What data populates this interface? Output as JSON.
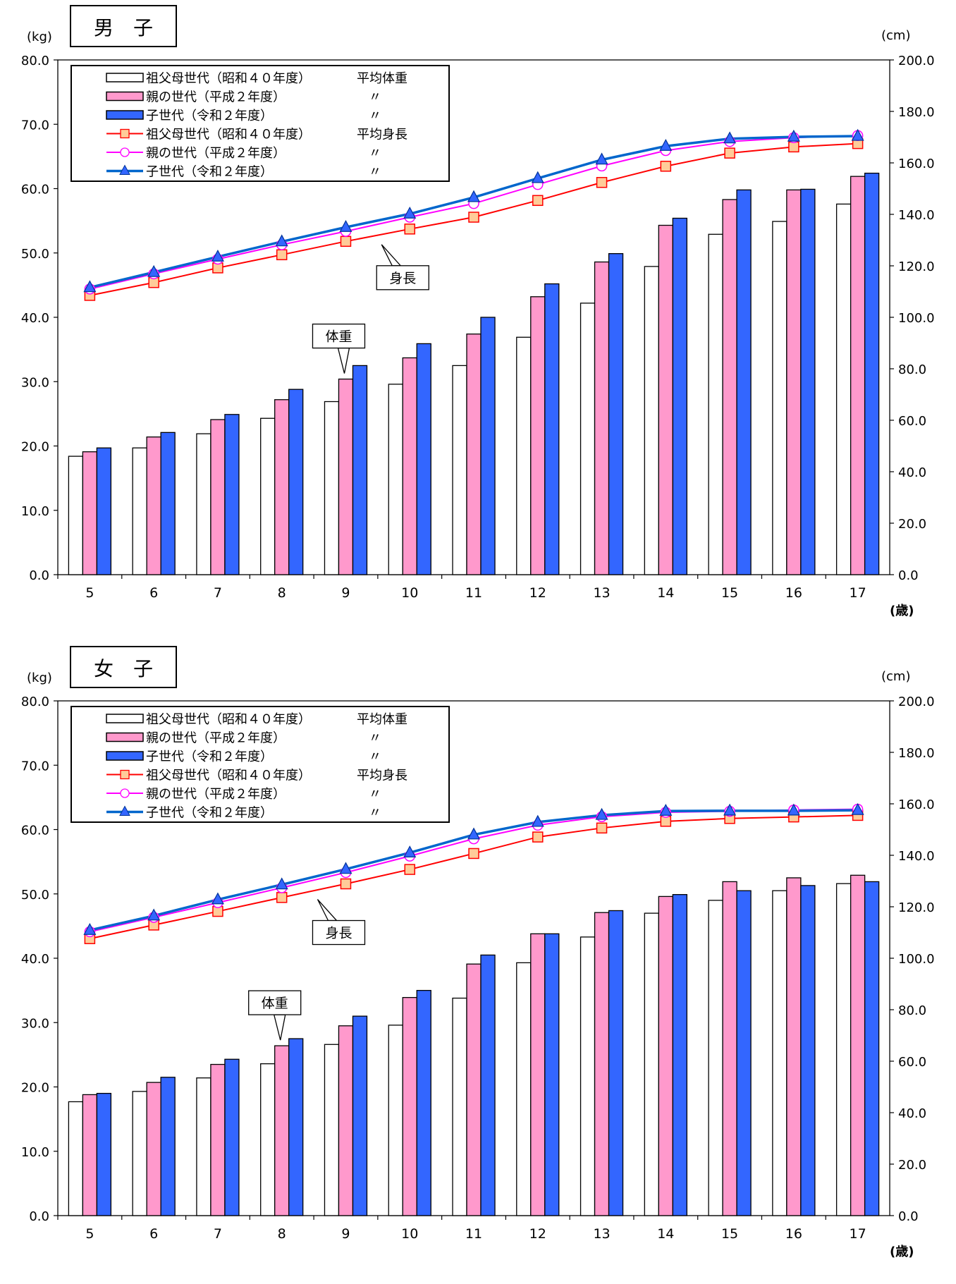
{
  "chart_data": [
    {
      "type": "bar",
      "title": "男　子",
      "y_left_unit": "(kg)",
      "y_right_unit": "(cm)",
      "x_unit": "(歳)",
      "categories": [
        "5",
        "6",
        "7",
        "8",
        "9",
        "10",
        "11",
        "12",
        "13",
        "14",
        "15",
        "16",
        "17"
      ],
      "ylim_left": [
        0,
        80
      ],
      "ylim_right": [
        0,
        200
      ],
      "yticks_left": [
        "0.0",
        "10.0",
        "20.0",
        "30.0",
        "40.0",
        "50.0",
        "60.0",
        "70.0",
        "80.0"
      ],
      "yticks_right": [
        "0.0",
        "20.0",
        "40.0",
        "60.0",
        "80.0",
        "100.0",
        "120.0",
        "140.0",
        "160.0",
        "180.0",
        "200.0"
      ],
      "legend_placement": "top-left",
      "grid": false,
      "series": [
        {
          "name": "祖父母世代（昭和４０年度）",
          "legend_suffix": "平均体重",
          "kind": "bar",
          "axis": "left",
          "color": "#ffffff",
          "values": [
            18.4,
            19.7,
            21.9,
            24.3,
            26.9,
            29.6,
            32.5,
            36.9,
            42.2,
            47.9,
            52.9,
            54.9,
            57.6
          ]
        },
        {
          "name": "親の世代（平成２年度）",
          "legend_suffix": "〃",
          "kind": "bar",
          "axis": "left",
          "color": "#ff99cc",
          "values": [
            19.1,
            21.4,
            24.1,
            27.2,
            30.4,
            33.7,
            37.4,
            43.2,
            48.6,
            54.3,
            58.3,
            59.8,
            61.9
          ]
        },
        {
          "name": "子世代（令和２年度）",
          "legend_suffix": "〃",
          "kind": "bar",
          "axis": "left",
          "color": "#3366ff",
          "values": [
            19.7,
            22.1,
            24.9,
            28.8,
            32.5,
            35.9,
            40.0,
            45.2,
            49.9,
            55.4,
            59.8,
            59.9,
            62.4
          ]
        },
        {
          "name": "祖父母世代（昭和４０年度）",
          "legend_suffix": "平均身長",
          "kind": "line",
          "axis": "right",
          "color": "#ff0000",
          "marker": "square",
          "values": [
            108.5,
            113.5,
            119.2,
            124.3,
            129.5,
            134.3,
            138.9,
            145.4,
            152.4,
            158.7,
            163.8,
            166.2,
            167.5
          ]
        },
        {
          "name": "親の世代（平成２年度）",
          "legend_suffix": "〃",
          "kind": "line",
          "axis": "right",
          "color": "#ff00ff",
          "marker": "circle",
          "values": [
            111.0,
            116.9,
            122.6,
            128.2,
            133.4,
            138.9,
            144.2,
            151.6,
            158.8,
            164.8,
            168.3,
            169.8,
            170.6
          ]
        },
        {
          "name": "子世代（令和２年度）",
          "legend_suffix": "〃",
          "kind": "line",
          "axis": "right",
          "color": "#0066cc",
          "marker": "triangle",
          "values": [
            111.6,
            117.5,
            123.5,
            129.4,
            135.0,
            140.2,
            146.6,
            154.0,
            161.2,
            166.5,
            169.4,
            170.1,
            170.4
          ]
        }
      ],
      "annotations": [
        {
          "text": "身長",
          "target_series": 3,
          "target_index": 5
        },
        {
          "text": "体重",
          "target_series": 1,
          "target_index": 4
        }
      ]
    },
    {
      "type": "bar",
      "title": "女　子",
      "y_left_unit": "(kg)",
      "y_right_unit": "(cm)",
      "x_unit": "(歳)",
      "categories": [
        "5",
        "6",
        "7",
        "8",
        "9",
        "10",
        "11",
        "12",
        "13",
        "14",
        "15",
        "16",
        "17"
      ],
      "ylim_left": [
        0,
        80
      ],
      "ylim_right": [
        0,
        200
      ],
      "yticks_left": [
        "0.0",
        "10.0",
        "20.0",
        "30.0",
        "40.0",
        "50.0",
        "60.0",
        "70.0",
        "80.0"
      ],
      "yticks_right": [
        "0.0",
        "20.0",
        "40.0",
        "60.0",
        "80.0",
        "100.0",
        "120.0",
        "140.0",
        "160.0",
        "180.0",
        "200.0"
      ],
      "legend_placement": "top-left",
      "grid": false,
      "series": [
        {
          "name": "祖父母世代（昭和４０年度）",
          "legend_suffix": "平均体重",
          "kind": "bar",
          "axis": "left",
          "color": "#ffffff",
          "values": [
            17.7,
            19.3,
            21.4,
            23.6,
            26.6,
            29.6,
            33.8,
            39.3,
            43.3,
            47.0,
            49.0,
            50.5,
            51.6
          ]
        },
        {
          "name": "親の世代（平成２年度）",
          "legend_suffix": "〃",
          "kind": "bar",
          "axis": "left",
          "color": "#ff99cc",
          "values": [
            18.8,
            20.7,
            23.5,
            26.4,
            29.5,
            33.9,
            39.1,
            43.8,
            47.1,
            49.6,
            51.9,
            52.5,
            52.9
          ]
        },
        {
          "name": "子世代（令和２年度）",
          "legend_suffix": "〃",
          "kind": "bar",
          "axis": "left",
          "color": "#3366ff",
          "values": [
            19.0,
            21.5,
            24.3,
            27.5,
            31.0,
            35.0,
            40.5,
            43.8,
            47.4,
            49.9,
            50.5,
            51.3,
            51.9
          ]
        },
        {
          "name": "祖父母世代（昭和４０年度）",
          "legend_suffix": "平均身長",
          "kind": "line",
          "axis": "right",
          "color": "#ff0000",
          "marker": "square",
          "values": [
            107.6,
            112.9,
            118.2,
            123.6,
            128.9,
            134.5,
            140.7,
            147.1,
            150.6,
            153.2,
            154.3,
            154.9,
            155.5
          ]
        },
        {
          "name": "親の世代（平成２年度）",
          "legend_suffix": "〃",
          "kind": "line",
          "axis": "right",
          "color": "#ff00ff",
          "marker": "circle",
          "values": [
            110.3,
            115.9,
            121.6,
            127.4,
            133.3,
            139.7,
            146.4,
            151.7,
            155.0,
            156.7,
            157.1,
            157.6,
            157.9
          ]
        },
        {
          "name": "子世代（令和２年度）",
          "legend_suffix": "〃",
          "kind": "line",
          "axis": "right",
          "color": "#0066cc",
          "marker": "triangle",
          "values": [
            110.9,
            116.5,
            122.8,
            128.6,
            134.6,
            141.0,
            148.0,
            152.9,
            155.6,
            157.2,
            157.3,
            157.3,
            157.5
          ]
        }
      ],
      "annotations": [
        {
          "text": "身長",
          "target_series": 3,
          "target_index": 4
        },
        {
          "text": "体重",
          "target_series": 1,
          "target_index": 3
        }
      ]
    }
  ]
}
